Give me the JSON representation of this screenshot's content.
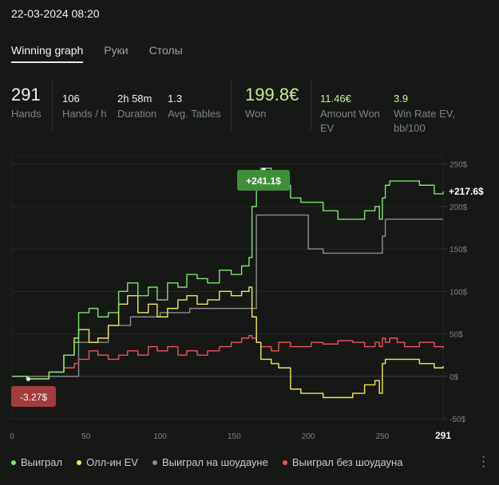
{
  "datetime": "22-03-2024 08:20",
  "tabs": [
    {
      "label": "Winning graph",
      "active": true
    },
    {
      "label": "Руки",
      "active": false
    },
    {
      "label": "Столы",
      "active": false
    }
  ],
  "stats": {
    "hands": {
      "value": "291",
      "label": "Hands"
    },
    "hands_per_hour": {
      "value": "106",
      "label": "Hands / h"
    },
    "duration": {
      "value": "2h 58m",
      "label": "Duration"
    },
    "avg_tables": {
      "value": "1.3",
      "label": "Avg. Tables"
    },
    "won": {
      "value": "199.8€",
      "label": "Won"
    },
    "amount_won_ev": {
      "value": "11.46€",
      "label": "Amount Won EV"
    },
    "win_rate_ev": {
      "value": "3.9",
      "label": "Win Rate EV, bb/100"
    }
  },
  "colors": {
    "green": "#7ee36e",
    "yellow": "#f2ea52",
    "gray": "#8d8d8d",
    "red": "#f0525a",
    "accent_won": "#c8f08a"
  },
  "chart_data": {
    "type": "line",
    "x_ticks": [
      "0",
      "50",
      "100",
      "150",
      "200",
      "250",
      "291"
    ],
    "y_ticks": [
      "250$",
      "200$",
      "150$",
      "100$",
      "50$",
      "0$",
      "-50$"
    ],
    "xlim": [
      0,
      291
    ],
    "ylim": [
      -50,
      260
    ],
    "grid": true,
    "series": [
      {
        "name": "Выиграл",
        "color": "#7ee36e",
        "x": [
          0,
          10,
          20,
          25,
          35,
          42,
          45,
          52,
          58,
          65,
          72,
          78,
          85,
          92,
          98,
          105,
          112,
          118,
          125,
          132,
          140,
          148,
          155,
          160,
          162,
          165,
          168,
          175,
          180,
          188,
          195,
          202,
          210,
          220,
          230,
          238,
          245,
          248,
          250,
          252,
          255,
          260,
          265,
          275,
          285,
          291
        ],
        "y": [
          0,
          -3,
          -3,
          5,
          25,
          40,
          75,
          80,
          70,
          75,
          100,
          110,
          95,
          105,
          90,
          110,
          105,
          120,
          115,
          110,
          125,
          120,
          130,
          140,
          200,
          235,
          245,
          240,
          225,
          210,
          205,
          205,
          195,
          185,
          185,
          195,
          200,
          185,
          210,
          225,
          230,
          230,
          230,
          225,
          215,
          217.6
        ]
      },
      {
        "name": "Олл-ин EV",
        "color": "#f2ea52",
        "x": [
          0,
          10,
          20,
          25,
          35,
          42,
          45,
          52,
          58,
          65,
          72,
          78,
          85,
          92,
          98,
          105,
          112,
          118,
          125,
          132,
          140,
          148,
          155,
          160,
          162,
          165,
          168,
          175,
          180,
          188,
          195,
          202,
          210,
          220,
          230,
          238,
          245,
          248,
          250,
          252,
          255,
          260,
          265,
          275,
          285,
          291
        ],
        "y": [
          0,
          -3,
          -3,
          5,
          25,
          45,
          55,
          40,
          45,
          60,
          85,
          95,
          75,
          85,
          70,
          80,
          90,
          95,
          85,
          90,
          100,
          95,
          100,
          105,
          70,
          40,
          20,
          15,
          10,
          -15,
          -20,
          -20,
          -25,
          -25,
          -20,
          -10,
          -5,
          -20,
          15,
          20,
          20,
          20,
          20,
          15,
          10,
          12
        ]
      },
      {
        "name": "Выиграл на шоудауне",
        "color": "#8d8d8d",
        "x": [
          0,
          20,
          40,
          45,
          60,
          65,
          75,
          80,
          95,
          100,
          115,
          120,
          140,
          150,
          162,
          165,
          175,
          195,
          200,
          210,
          240,
          248,
          250,
          252,
          260,
          291
        ],
        "y": [
          0,
          0,
          0,
          40,
          40,
          60,
          60,
          70,
          70,
          75,
          75,
          80,
          80,
          80,
          80,
          190,
          190,
          190,
          150,
          145,
          145,
          145,
          165,
          185,
          185,
          185
        ]
      },
      {
        "name": "Выиграл без шоудауна",
        "color": "#f0525a",
        "x": [
          0,
          10,
          20,
          25,
          35,
          42,
          45,
          52,
          58,
          65,
          72,
          78,
          85,
          92,
          98,
          105,
          112,
          118,
          125,
          132,
          140,
          148,
          155,
          160,
          162,
          165,
          168,
          175,
          180,
          188,
          195,
          202,
          210,
          220,
          230,
          238,
          245,
          248,
          250,
          252,
          255,
          260,
          265,
          275,
          285,
          291
        ],
        "y": [
          0,
          -3,
          -3,
          5,
          10,
          15,
          20,
          30,
          25,
          20,
          25,
          30,
          25,
          35,
          30,
          35,
          25,
          30,
          25,
          30,
          35,
          40,
          45,
          48,
          45,
          40,
          35,
          30,
          40,
          35,
          35,
          40,
          38,
          42,
          40,
          35,
          40,
          35,
          45,
          40,
          45,
          40,
          35,
          40,
          35,
          33
        ]
      }
    ],
    "annotations": [
      {
        "label": "+241.1$",
        "x": 170,
        "y": 241.1,
        "color": "#3f8f3a"
      },
      {
        "label": "-3.27$",
        "x": 11,
        "y": -3.27,
        "color": "#a23b3b"
      },
      {
        "label": "+217.6$",
        "x": 291,
        "y": 217.6
      }
    ]
  },
  "legend": [
    {
      "label": "Выиграл",
      "color": "#7ee36e"
    },
    {
      "label": "Олл-ин EV",
      "color": "#f2ea52"
    },
    {
      "label": "Выиграл на шоудауне",
      "color": "#8d8d8d"
    },
    {
      "label": "Выиграл без шоудауна",
      "color": "#f0525a"
    }
  ]
}
